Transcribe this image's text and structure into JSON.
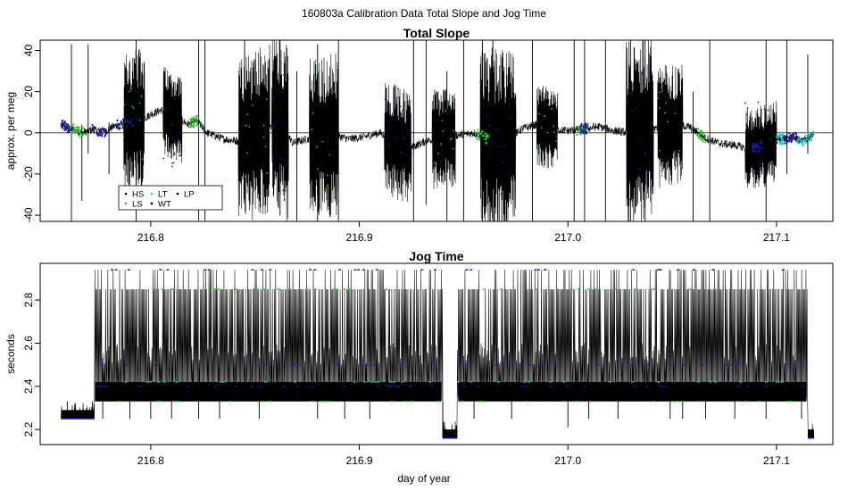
{
  "figure": {
    "suptitle": "160803a   Calibration Data Total Slope and Jog Time"
  },
  "chart_data": [
    {
      "type": "line",
      "title": "Total Slope",
      "xlabel": "",
      "ylabel": "approx. per meg",
      "xlim": [
        216.747,
        217.127
      ],
      "ylim": [
        -43,
        45
      ],
      "x_ticks": [
        216.8,
        216.9,
        217.0,
        217.1
      ],
      "x_tick_labels": [
        "216.8",
        "216.9",
        "217.0",
        "217.1"
      ],
      "y_ticks": [
        -40,
        -20,
        0,
        20,
        40
      ],
      "y_tick_labels": [
        "-40",
        "-20",
        "0",
        "20",
        "40"
      ],
      "grid": false,
      "reference_line_y": 0,
      "legend": {
        "placement": "bottom-left",
        "entries": [
          {
            "name": "HS",
            "color": "#000000"
          },
          {
            "name": "LS",
            "color": "#22cc22"
          },
          {
            "name": "LT",
            "color": "#00cccc"
          },
          {
            "name": "WT",
            "color": "#000000"
          },
          {
            "name": "LP",
            "color": "#000000"
          }
        ]
      },
      "series_colors": {
        "trace": "#000000",
        "HS": "#000000",
        "LS": "#22cc22",
        "LT": "#00cccc",
        "WT": "#000000",
        "LP": "#000000",
        "cal": "#1a1aaa"
      },
      "x_range": [
        216.757,
        217.118
      ],
      "baseline": [
        [
          216.757,
          4
        ],
        [
          216.762,
          2
        ],
        [
          216.767,
          0
        ],
        [
          216.772,
          1.5
        ],
        [
          216.778,
          0.5
        ],
        [
          216.782,
          3
        ],
        [
          216.788,
          5
        ],
        [
          216.795,
          6
        ],
        [
          216.8,
          9
        ],
        [
          216.805,
          11
        ],
        [
          216.812,
          8
        ],
        [
          216.818,
          4
        ],
        [
          216.822,
          6
        ],
        [
          216.827,
          0
        ],
        [
          216.835,
          -3
        ],
        [
          216.842,
          -4
        ],
        [
          216.85,
          -1
        ],
        [
          216.857,
          3
        ],
        [
          216.862,
          6
        ],
        [
          216.868,
          -5
        ],
        [
          216.875,
          -3
        ],
        [
          216.882,
          -2
        ],
        [
          216.888,
          -1
        ],
        [
          216.895,
          -3
        ],
        [
          216.902,
          -2
        ],
        [
          216.91,
          0
        ],
        [
          216.918,
          -5
        ],
        [
          216.925,
          -7
        ],
        [
          216.932,
          -4
        ],
        [
          216.94,
          -2
        ],
        [
          216.948,
          -1
        ],
        [
          216.955,
          0
        ],
        [
          216.962,
          -3
        ],
        [
          216.97,
          -5
        ],
        [
          216.978,
          2
        ],
        [
          216.985,
          4
        ],
        [
          216.992,
          2
        ],
        [
          217.0,
          1
        ],
        [
          217.008,
          2
        ],
        [
          217.015,
          3
        ],
        [
          217.022,
          1
        ],
        [
          217.03,
          0
        ],
        [
          217.04,
          2
        ],
        [
          217.05,
          4
        ],
        [
          217.058,
          3
        ],
        [
          217.065,
          -2
        ],
        [
          217.072,
          -5
        ],
        [
          217.08,
          -6
        ],
        [
          217.088,
          -8
        ],
        [
          217.095,
          -6
        ],
        [
          217.102,
          -3
        ],
        [
          217.108,
          -2
        ],
        [
          217.112,
          -4
        ],
        [
          217.118,
          -1
        ]
      ],
      "burst_windows": [
        [
          216.787,
          216.797,
          35
        ],
        [
          216.806,
          216.815,
          22
        ],
        [
          216.842,
          216.857,
          42
        ],
        [
          216.858,
          216.866,
          44
        ],
        [
          216.876,
          216.89,
          40
        ],
        [
          216.912,
          216.925,
          28
        ],
        [
          216.935,
          216.946,
          25
        ],
        [
          216.958,
          216.975,
          45
        ],
        [
          216.985,
          216.995,
          20
        ],
        [
          217.028,
          217.041,
          45
        ],
        [
          217.043,
          217.055,
          30
        ],
        [
          217.085,
          217.1,
          20
        ]
      ],
      "spikes": [
        [
          216.762,
          -43,
          43
        ],
        [
          216.767,
          -33,
          4
        ],
        [
          216.77,
          -10,
          43
        ],
        [
          216.78,
          -20,
          5
        ],
        [
          216.793,
          -43,
          45
        ],
        [
          216.823,
          -43,
          45
        ],
        [
          216.826,
          -43,
          45
        ],
        [
          216.845,
          -20,
          45
        ],
        [
          216.862,
          -40,
          45
        ],
        [
          216.87,
          -43,
          30
        ],
        [
          216.88,
          -43,
          43
        ],
        [
          216.89,
          -43,
          45
        ],
        [
          216.926,
          -43,
          45
        ],
        [
          216.932,
          -35,
          45
        ],
        [
          216.942,
          -43,
          30
        ],
        [
          216.95,
          -43,
          45
        ],
        [
          216.959,
          -43,
          45
        ],
        [
          216.964,
          -43,
          45
        ],
        [
          216.983,
          -43,
          45
        ],
        [
          217.003,
          -43,
          45
        ],
        [
          217.008,
          -43,
          45
        ],
        [
          217.018,
          -43,
          45
        ],
        [
          217.03,
          -43,
          45
        ],
        [
          217.037,
          -43,
          45
        ],
        [
          217.068,
          -43,
          45
        ],
        [
          217.06,
          -43,
          20
        ],
        [
          217.095,
          -43,
          45
        ],
        [
          217.105,
          -20,
          45
        ],
        [
          217.115,
          -10,
          38
        ]
      ],
      "calibration_segments": [
        [
          216.757,
          216.761,
          "cal"
        ],
        [
          216.762,
          216.768,
          "LS"
        ],
        [
          216.772,
          216.779,
          "cal"
        ],
        [
          216.783,
          216.792,
          "cal"
        ],
        [
          216.819,
          216.823,
          "LS"
        ],
        [
          216.956,
          216.962,
          "LS"
        ],
        [
          217.004,
          217.01,
          "LS"
        ],
        [
          217.006,
          217.009,
          "cal"
        ],
        [
          217.062,
          217.066,
          "LS"
        ],
        [
          217.088,
          217.093,
          "cal"
        ],
        [
          217.1,
          217.104,
          "LT"
        ],
        [
          217.104,
          217.11,
          "cal"
        ],
        [
          217.11,
          217.118,
          "LT"
        ]
      ]
    },
    {
      "type": "line",
      "title": "Jog Time",
      "xlabel": "day of year",
      "ylabel": "seconds",
      "xlim": [
        216.747,
        217.127
      ],
      "ylim": [
        2.13,
        2.97
      ],
      "x_ticks": [
        216.8,
        216.9,
        217.0,
        217.1
      ],
      "x_tick_labels": [
        "216.8",
        "216.9",
        "217.0",
        "217.1"
      ],
      "y_ticks": [
        2.2,
        2.4,
        2.6,
        2.8
      ],
      "y_tick_labels": [
        "2.2",
        "2.4",
        "2.6",
        "2.8"
      ],
      "grid": false,
      "x_range": [
        216.757,
        217.118
      ],
      "band_levels": [
        2.33,
        2.4,
        2.42,
        2.5
      ],
      "oscillation_top": [
        2.85,
        2.94
      ],
      "low_segments": [
        [
          216.757,
          216.773,
          2.25
        ],
        [
          216.94,
          216.947,
          2.16
        ],
        [
          217.115,
          217.118,
          2.16
        ]
      ],
      "dropouts": [
        [
          216.76,
          2.25
        ],
        [
          216.772,
          2.25
        ],
        [
          216.777,
          2.25
        ],
        [
          216.79,
          2.25
        ],
        [
          216.8,
          2.25
        ],
        [
          216.81,
          2.25
        ],
        [
          216.823,
          2.25
        ],
        [
          216.833,
          2.25
        ],
        [
          216.852,
          2.25
        ],
        [
          216.88,
          2.25
        ],
        [
          216.893,
          2.25
        ],
        [
          216.905,
          2.25
        ],
        [
          216.94,
          2.16
        ],
        [
          216.955,
          2.25
        ],
        [
          216.973,
          2.25
        ],
        [
          217.0,
          2.21
        ],
        [
          217.01,
          2.25
        ],
        [
          217.024,
          2.25
        ],
        [
          217.049,
          2.25
        ],
        [
          217.055,
          2.25
        ],
        [
          217.066,
          2.25
        ],
        [
          217.08,
          2.25
        ],
        [
          217.095,
          2.25
        ],
        [
          217.112,
          2.25
        ]
      ],
      "colors": {
        "trace": "#000000",
        "HS": "#1a1aaa",
        "LS": "#22cc22",
        "LT": "#00cccc"
      }
    }
  ]
}
